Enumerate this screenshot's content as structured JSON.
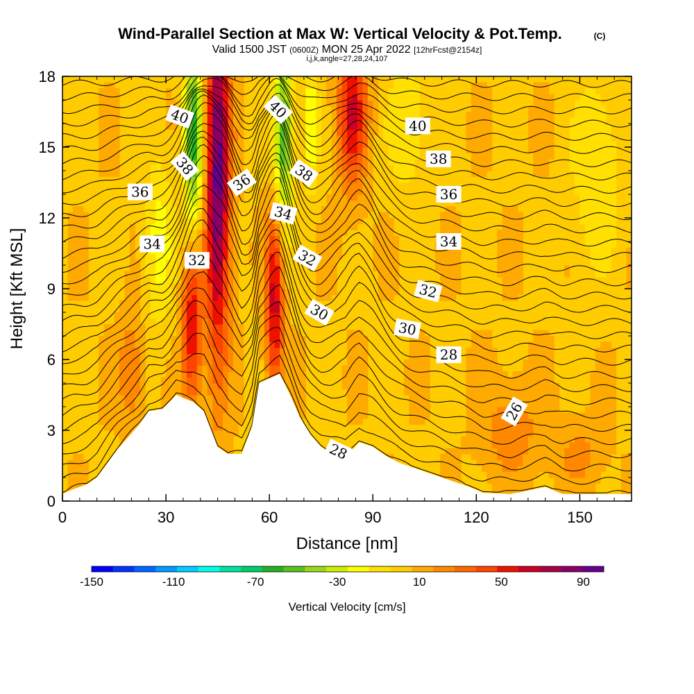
{
  "title": "Wind-Parallel Section at Max W: Vertical Velocity & Pot.Temp.",
  "title_mark": "(C)",
  "subtitle_prefix": "Valid 1500 JST",
  "subtitle_utc": "(0600Z)",
  "subtitle_date": "MON 25 Apr 2022",
  "subtitle_fcst": "[12hrFcst@2154z]",
  "subtitle2": "i,j,k,angle=27,28,24,107",
  "chart_data": {
    "type": "contour-section",
    "xlabel": "Distance [nm]",
    "ylabel": "Height [Kft MSL]",
    "xlim": [
      0,
      165
    ],
    "ylim": [
      0,
      18
    ],
    "x_ticks": [
      "0",
      "30",
      "60",
      "90",
      "120",
      "150"
    ],
    "y_ticks": [
      "0",
      "3",
      "6",
      "9",
      "12",
      "15",
      "18"
    ],
    "terrain": [
      [
        0,
        0.3
      ],
      [
        3,
        0.5
      ],
      [
        7,
        0.7
      ],
      [
        10,
        1.0
      ],
      [
        13,
        1.6
      ],
      [
        16,
        2.2
      ],
      [
        19,
        2.7
      ],
      [
        22,
        3.2
      ],
      [
        25,
        3.8
      ],
      [
        29,
        3.9
      ],
      [
        33,
        4.5
      ],
      [
        38,
        4.2
      ],
      [
        41,
        3.8
      ],
      [
        45,
        2.3
      ],
      [
        48,
        2.0
      ],
      [
        52,
        2.0
      ],
      [
        55,
        3.2
      ],
      [
        57,
        5.0
      ],
      [
        60,
        5.2
      ],
      [
        63,
        5.4
      ],
      [
        66,
        4.5
      ],
      [
        69,
        3.5
      ],
      [
        72,
        2.8
      ],
      [
        75,
        2.3
      ],
      [
        78,
        2.0
      ],
      [
        82,
        1.8
      ],
      [
        86,
        2.5
      ],
      [
        90,
        2.3
      ],
      [
        94,
        1.9
      ],
      [
        98,
        1.6
      ],
      [
        102,
        1.4
      ],
      [
        106,
        1.2
      ],
      [
        110,
        1.0
      ],
      [
        114,
        0.8
      ],
      [
        118,
        0.6
      ],
      [
        122,
        0.35
      ],
      [
        130,
        0.3
      ],
      [
        140,
        0.6
      ],
      [
        145,
        0.3
      ],
      [
        150,
        0.3
      ],
      [
        158,
        0.3
      ],
      [
        165,
        0.3
      ]
    ],
    "velocity_features": [
      {
        "x": 45,
        "y": 14,
        "value": 90,
        "sx": 2.4,
        "sy": 5.5
      },
      {
        "x": 37.5,
        "y": 7.5,
        "value": 55,
        "sx": 2.0,
        "sy": 2.4
      },
      {
        "x": 61.5,
        "y": 8.5,
        "value": 60,
        "sx": 1.8,
        "sy": 2.8
      },
      {
        "x": 84,
        "y": 16.5,
        "value": 55,
        "sx": 3.0,
        "sy": 2.2
      },
      {
        "x": 38,
        "y": 15.5,
        "value": -65,
        "sx": 2.0,
        "sy": 3.0
      },
      {
        "x": 64,
        "y": 15.5,
        "value": -60,
        "sx": 2.0,
        "sy": 2.8
      },
      {
        "x": 72,
        "y": 16,
        "value": -30,
        "sx": 1.5,
        "sy": 2.0
      },
      {
        "x": 28,
        "y": 11,
        "value": -25,
        "sx": 3.0,
        "sy": 2.5
      },
      {
        "x": 100,
        "y": 16,
        "value": -20,
        "sx": 4.0,
        "sy": 2.0
      },
      {
        "x": 155,
        "y": 14,
        "value": -20,
        "sx": 5.0,
        "sy": 3.0
      },
      {
        "x": 20,
        "y": 5.5,
        "value": 25,
        "sx": 2.5,
        "sy": 1.5
      },
      {
        "x": 130,
        "y": 3,
        "value": 18,
        "sx": 6.0,
        "sy": 1.5
      },
      {
        "x": 150,
        "y": 2,
        "value": 15,
        "sx": 5.0,
        "sy": 1.0
      }
    ],
    "contour_labels": [
      {
        "text": "40",
        "x": 34,
        "y": 16.3,
        "angle": 20
      },
      {
        "text": "38",
        "x": 35.5,
        "y": 14.2,
        "angle": 50
      },
      {
        "text": "36",
        "x": 22.5,
        "y": 13.1,
        "angle": 0
      },
      {
        "text": "36",
        "x": 52,
        "y": 13.5,
        "angle": -35
      },
      {
        "text": "34",
        "x": 26,
        "y": 10.9,
        "angle": 0
      },
      {
        "text": "34",
        "x": 64,
        "y": 12.2,
        "angle": 15
      },
      {
        "text": "32",
        "x": 39,
        "y": 10.2,
        "angle": 0
      },
      {
        "text": "32",
        "x": 71,
        "y": 10.3,
        "angle": 30
      },
      {
        "text": "40",
        "x": 62.5,
        "y": 16.6,
        "angle": 45
      },
      {
        "text": "38",
        "x": 70,
        "y": 13.9,
        "angle": 35
      },
      {
        "text": "40",
        "x": 103,
        "y": 15.9,
        "angle": 0
      },
      {
        "text": "38",
        "x": 109,
        "y": 14.5,
        "angle": 0
      },
      {
        "text": "36",
        "x": 112,
        "y": 13.0,
        "angle": 0
      },
      {
        "text": "34",
        "x": 112,
        "y": 11.0,
        "angle": 0
      },
      {
        "text": "32",
        "x": 106,
        "y": 8.9,
        "angle": 15
      },
      {
        "text": "30",
        "x": 74.5,
        "y": 8.0,
        "angle": 30
      },
      {
        "text": "30",
        "x": 100,
        "y": 7.3,
        "angle": 10
      },
      {
        "text": "28",
        "x": 112,
        "y": 6.2,
        "angle": 0
      },
      {
        "text": "28",
        "x": 80,
        "y": 2.1,
        "angle": 25
      },
      {
        "text": "26",
        "x": 131,
        "y": 3.8,
        "angle": -60
      }
    ]
  },
  "colorbar": {
    "title": "Vertical Velocity [cm/s]",
    "tick_labels": [
      "-150",
      "-110",
      "-70",
      "-30",
      "10",
      "50",
      "90"
    ],
    "range": [
      -150,
      100
    ],
    "colors": [
      "#0000ff",
      "#0033ff",
      "#0066ff",
      "#0099ff",
      "#00ccff",
      "#00ffe6",
      "#00e0a0",
      "#00cc66",
      "#22b022",
      "#55c020",
      "#99d51a",
      "#ccee00",
      "#ffff00",
      "#ffe000",
      "#ffcc00",
      "#ffaa00",
      "#ff8800",
      "#ff6600",
      "#ff4400",
      "#ee1100",
      "#cc0022",
      "#aa0044",
      "#880066",
      "#660088"
    ]
  }
}
